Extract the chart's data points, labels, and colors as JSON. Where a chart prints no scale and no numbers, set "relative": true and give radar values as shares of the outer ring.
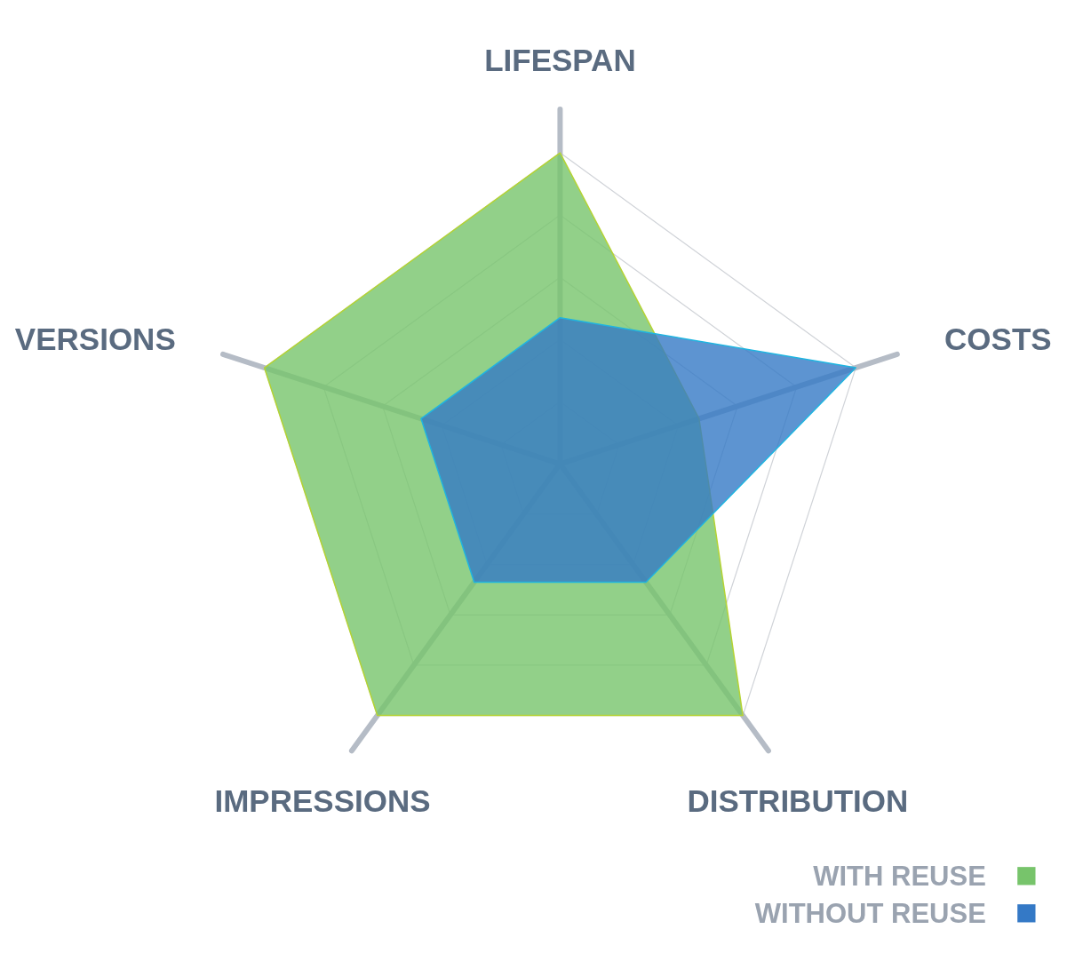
{
  "chart_data": {
    "type": "radar",
    "relative": true,
    "categories": [
      "LIFESPAN",
      "COSTS",
      "DISTRIBUTION",
      "IMPRESSIONS",
      "VERSIONS"
    ],
    "series": [
      {
        "name": "WITH REUSE",
        "color": "#77c46b",
        "values": [
          1.0,
          0.47,
          1.0,
          1.0,
          1.0
        ]
      },
      {
        "name": "WITHOUT REUSE",
        "color": "#3479c6",
        "values": [
          0.47,
          1.0,
          0.47,
          0.47,
          0.47
        ]
      }
    ],
    "grid": true,
    "legend": "bottom right"
  }
}
